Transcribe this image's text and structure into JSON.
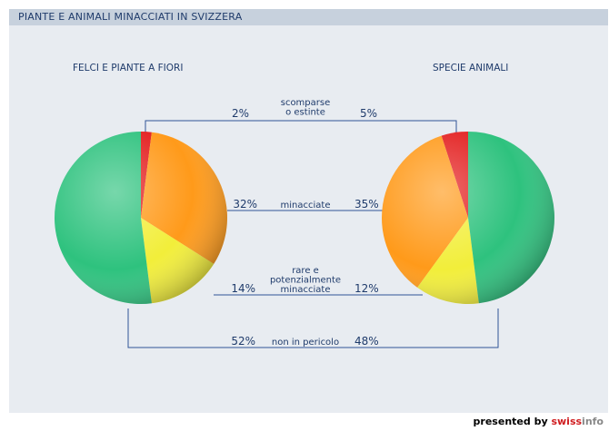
{
  "header": {
    "title": "PIANTE E ANIMALI MINACCIATI IN SVIZZERA"
  },
  "footer": {
    "prefix": "presented by",
    "brand_swiss": "swiss",
    "brand_info": "info"
  },
  "colors": {
    "scomparse": "#e31e1e",
    "minacciate": "#ff9a1a",
    "rare": "#f2ee3a",
    "non_pericolo": "#2ec27e",
    "connector": "#2f5597"
  },
  "chart_data": [
    {
      "type": "pie",
      "title": "FELCI E PIANTE A FIORI",
      "labels": [
        "scomparse o estinte",
        "minacciate",
        "rare e potenzialmente minacciate",
        "non in pericolo"
      ],
      "values": [
        2,
        32,
        14,
        52
      ],
      "value_labels": [
        "2%",
        "32%",
        "14%",
        "52%"
      ]
    },
    {
      "type": "pie",
      "title": "SPECIE ANIMALI",
      "labels": [
        "scomparse o estinte",
        "minacciate",
        "rare e potenzialmente minacciate",
        "non in pericolo"
      ],
      "values": [
        5,
        35,
        12,
        48
      ],
      "value_labels": [
        "5%",
        "35%",
        "12%",
        "48%"
      ]
    }
  ],
  "category_lines": [
    [
      "scomparse",
      "o estinte"
    ],
    [
      "minacciate"
    ],
    [
      "rare e",
      "potenzialmente",
      "minacciate"
    ],
    [
      "non in pericolo"
    ]
  ]
}
